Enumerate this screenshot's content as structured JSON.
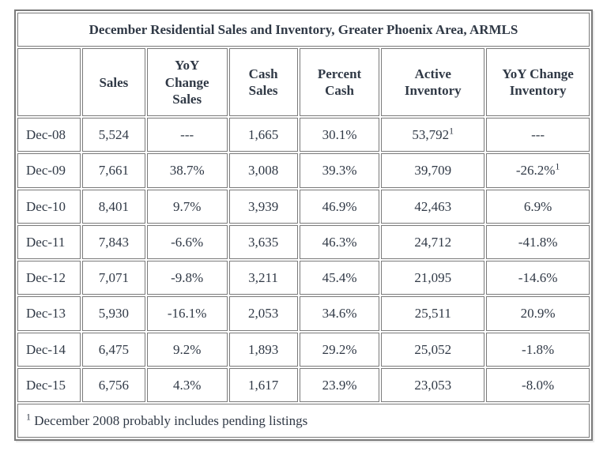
{
  "table": {
    "title": "December Residential Sales and Inventory, Greater Phoenix Area, ARMLS",
    "title_fontsize": 20,
    "font_family": "Georgia, serif",
    "border_color": "#7a7a7a",
    "background_color": "#ffffff",
    "text_color": "#303946",
    "header_fontsize": 17,
    "cell_fontsize": 17,
    "columns": [
      {
        "key": "period",
        "label": "",
        "width_pct": 11,
        "align": "left"
      },
      {
        "key": "sales",
        "label": "Sales",
        "width_pct": 11,
        "align": "center"
      },
      {
        "key": "yoy_sales",
        "label": "YoY Change Sales",
        "width_pct": 14,
        "align": "center"
      },
      {
        "key": "cash_sales",
        "label": "Cash Sales",
        "width_pct": 12,
        "align": "center"
      },
      {
        "key": "pct_cash",
        "label": "Percent Cash",
        "width_pct": 14,
        "align": "center"
      },
      {
        "key": "active_inv",
        "label": "Active Inventory",
        "width_pct": 18,
        "align": "center"
      },
      {
        "key": "yoy_inv",
        "label": "YoY Change Inventory",
        "width_pct": 18,
        "align": "center"
      }
    ],
    "rows": [
      {
        "period": "Dec-08",
        "sales": "5,524",
        "yoy_sales": "---",
        "cash_sales": "1,665",
        "pct_cash": "30.1%",
        "active_inv": "53,792",
        "active_inv_sup": "1",
        "yoy_inv": "---"
      },
      {
        "period": "Dec-09",
        "sales": "7,661",
        "yoy_sales": "38.7%",
        "cash_sales": "3,008",
        "pct_cash": "39.3%",
        "active_inv": "39,709",
        "yoy_inv": "-26.2%",
        "yoy_inv_sup": "1"
      },
      {
        "period": "Dec-10",
        "sales": "8,401",
        "yoy_sales": "9.7%",
        "cash_sales": "3,939",
        "pct_cash": "46.9%",
        "active_inv": "42,463",
        "yoy_inv": "6.9%"
      },
      {
        "period": "Dec-11",
        "sales": "7,843",
        "yoy_sales": "-6.6%",
        "cash_sales": "3,635",
        "pct_cash": "46.3%",
        "active_inv": "24,712",
        "yoy_inv": "-41.8%"
      },
      {
        "period": "Dec-12",
        "sales": "7,071",
        "yoy_sales": "-9.8%",
        "cash_sales": "3,211",
        "pct_cash": "45.4%",
        "active_inv": "21,095",
        "yoy_inv": "-14.6%"
      },
      {
        "period": "Dec-13",
        "sales": "5,930",
        "yoy_sales": "-16.1%",
        "cash_sales": "2,053",
        "pct_cash": "34.6%",
        "active_inv": "25,511",
        "yoy_inv": "20.9%"
      },
      {
        "period": "Dec-14",
        "sales": "6,475",
        "yoy_sales": "9.2%",
        "cash_sales": "1,893",
        "pct_cash": "29.2%",
        "active_inv": "25,052",
        "yoy_inv": "-1.8%"
      },
      {
        "period": "Dec-15",
        "sales": "6,756",
        "yoy_sales": "4.3%",
        "cash_sales": "1,617",
        "pct_cash": "23.9%",
        "active_inv": "23,053",
        "yoy_inv": "-8.0%"
      }
    ],
    "footnote_sup": "1",
    "footnote_text": " December 2008 probably includes pending listings"
  }
}
